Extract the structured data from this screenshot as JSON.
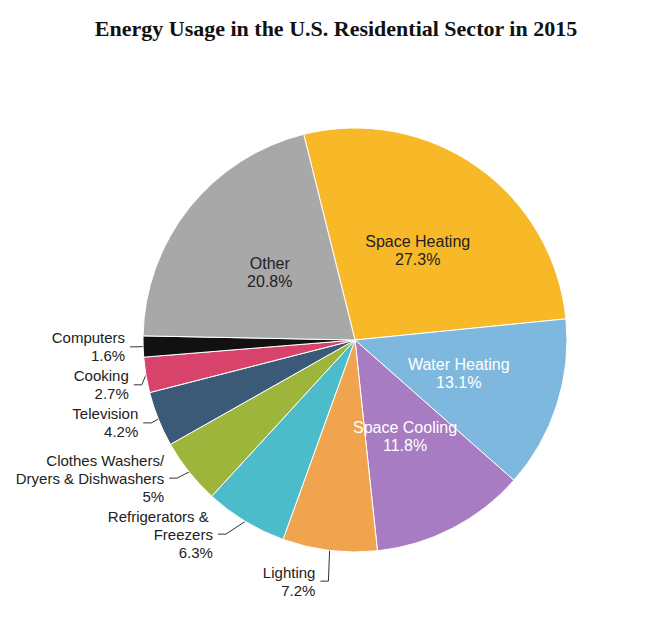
{
  "chart_data": {
    "type": "pie",
    "title": "Energy Usage in the U.S. Residential Sector in 2015",
    "categories": [
      "Space Heating",
      "Water Heating",
      "Space Cooling",
      "Lighting",
      "Refrigerators & Freezers",
      "Clothes Washers/Dryers & Dishwashers",
      "Television",
      "Cooking",
      "Computers",
      "Other"
    ],
    "values": [
      27.3,
      13.1,
      11.8,
      7.2,
      6.3,
      5,
      4.2,
      2.7,
      1.6,
      20.8
    ],
    "value_labels": [
      "27.3%",
      "13.1%",
      "11.8%",
      "7.2%",
      "6.3%",
      "5%",
      "4.2%",
      "2.7%",
      "1.6%",
      "20.8%"
    ],
    "colors": [
      "#f7b928",
      "#7fb8de",
      "#a77cc2",
      "#f0a44e",
      "#4cbccb",
      "#9db53b",
      "#3a5a78",
      "#d8436b",
      "#111111",
      "#a8a8a8"
    ],
    "data_labels": true
  }
}
